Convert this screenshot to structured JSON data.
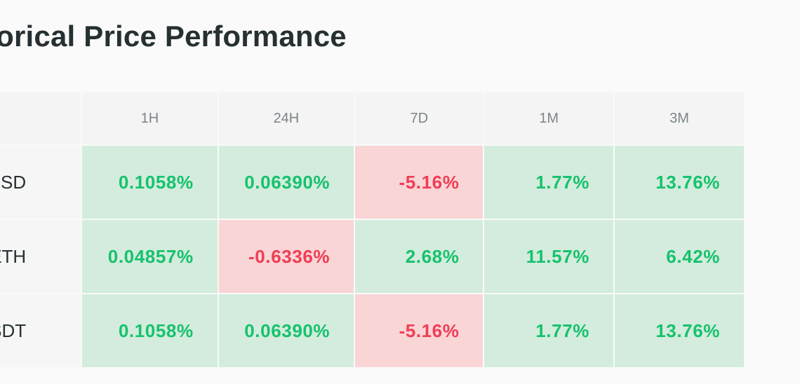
{
  "title": "Historical Price Performance",
  "columns": [
    "1H",
    "24H",
    "7D",
    "1M",
    "3M"
  ],
  "colors": {
    "positive_text": "#16c26d",
    "positive_bg": "#d3ecdd",
    "negative_text": "#f03d55",
    "negative_bg": "#f9d5d6"
  },
  "rows": [
    {
      "pair": "USD",
      "cells": [
        {
          "value": "0.1058%",
          "trend": "up"
        },
        {
          "value": "0.06390%",
          "trend": "up"
        },
        {
          "value": "-5.16%",
          "trend": "down"
        },
        {
          "value": "1.77%",
          "trend": "up"
        },
        {
          "value": "13.76%",
          "trend": "up"
        }
      ]
    },
    {
      "pair": "ETH",
      "cells": [
        {
          "value": "0.04857%",
          "trend": "up"
        },
        {
          "value": "-0.6336%",
          "trend": "down"
        },
        {
          "value": "2.68%",
          "trend": "up"
        },
        {
          "value": "11.57%",
          "trend": "up"
        },
        {
          "value": "6.42%",
          "trend": "up"
        }
      ]
    },
    {
      "pair": "USDT",
      "cells": [
        {
          "value": "0.1058%",
          "trend": "up"
        },
        {
          "value": "0.06390%",
          "trend": "up"
        },
        {
          "value": "-5.16%",
          "trend": "down"
        },
        {
          "value": "1.77%",
          "trend": "up"
        },
        {
          "value": "13.76%",
          "trend": "up"
        }
      ]
    }
  ]
}
